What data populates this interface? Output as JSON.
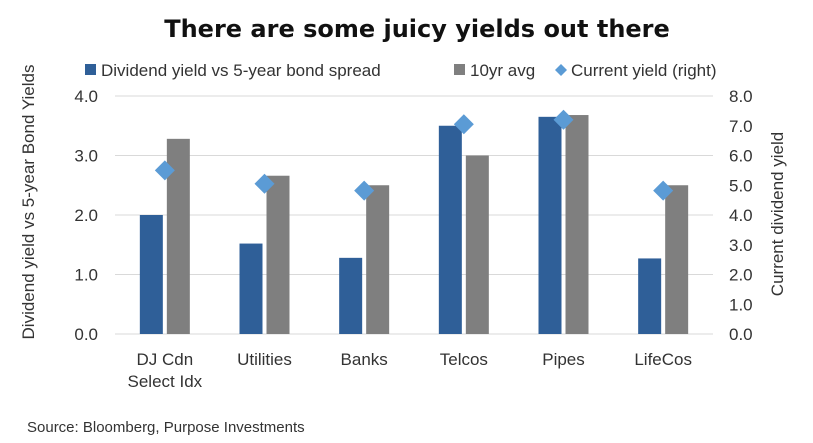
{
  "chart_data": {
    "type": "bar",
    "title": "There are some juicy yields out there",
    "categories": [
      [
        "DJ Cdn",
        "Select Idx"
      ],
      [
        "Utilities"
      ],
      [
        "Banks"
      ],
      [
        "Telcos"
      ],
      [
        "Pipes"
      ],
      [
        "LifeCos"
      ]
    ],
    "series": [
      {
        "name": "Dividend yield vs 5-year bond spread",
        "kind": "bar",
        "axis": "left",
        "color": "#2f5f98",
        "values": [
          2.0,
          1.52,
          1.28,
          3.5,
          3.65,
          1.27
        ]
      },
      {
        "name": "10yr avg",
        "kind": "bar",
        "axis": "left",
        "color": "#7f7f7f",
        "values": [
          3.28,
          2.66,
          2.5,
          3.0,
          3.68,
          2.5
        ]
      },
      {
        "name": "Current yield (right)",
        "kind": "scatter",
        "marker": "diamond",
        "axis": "right",
        "color": "#5b9bd5",
        "values": [
          5.5,
          5.05,
          4.82,
          7.05,
          7.2,
          4.82
        ]
      }
    ],
    "y_left": {
      "label": "Dividend yield vs 5-year Bond Yields",
      "ylim": [
        0,
        4
      ],
      "ticks": [
        "0.0",
        "1.0",
        "2.0",
        "3.0",
        "4.0"
      ]
    },
    "y_right": {
      "label": "Current dividend yield",
      "ylim": [
        0,
        8
      ],
      "ticks": [
        "0.0",
        "1.0",
        "2.0",
        "3.0",
        "4.0",
        "5.0",
        "6.0",
        "7.0",
        "8.0"
      ]
    },
    "grid": true,
    "legend_position": "top"
  },
  "source": "Source: Bloomberg, Purpose Investments"
}
